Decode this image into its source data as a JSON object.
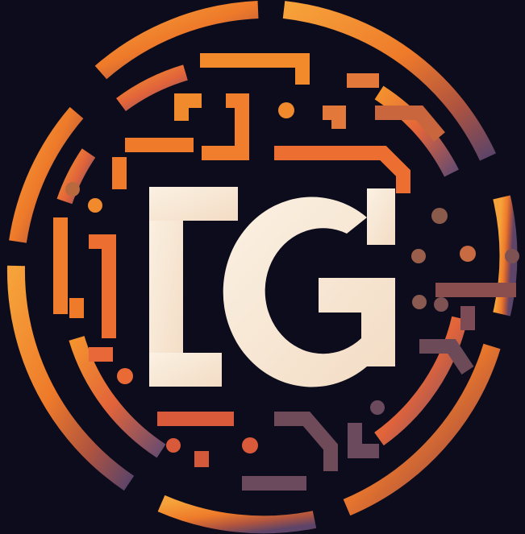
{
  "logo": {
    "monogram": "LG",
    "colors": {
      "background": "#0d0c1c",
      "accent_orange": "#f08a2c",
      "accent_deep": "#e2563a",
      "accent_muted": "#8a4e4e",
      "accent_purple": "#6e4f73",
      "letter_cream": "#fbeede"
    },
    "icon": "circuit-ring-icon"
  }
}
